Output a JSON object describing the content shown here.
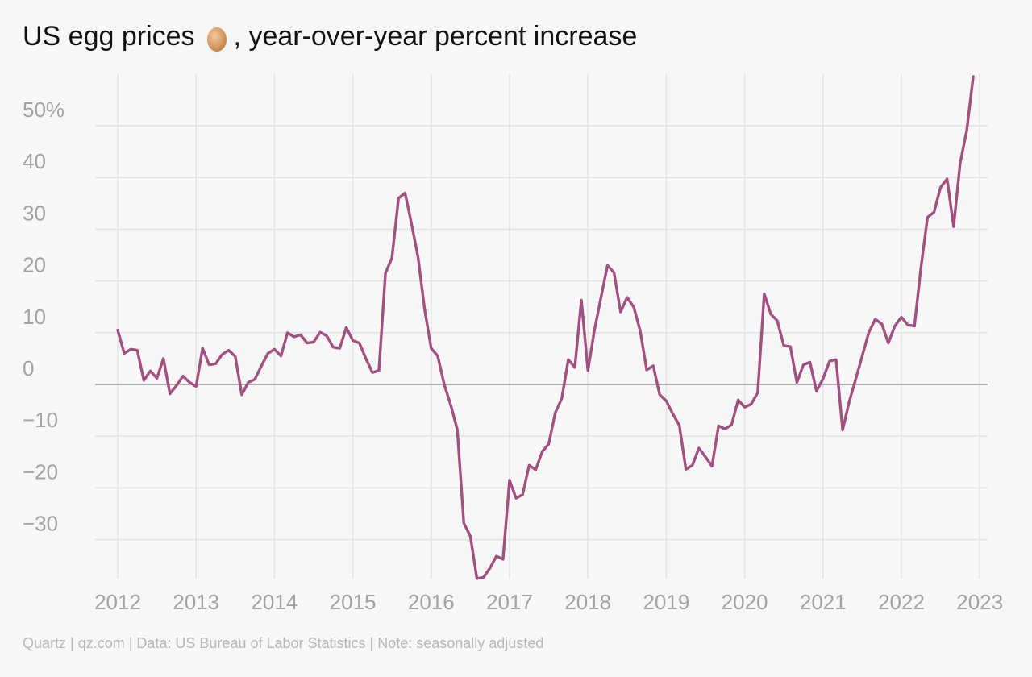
{
  "title": {
    "before": "US egg prices",
    "after": ", year-over-year percent increase",
    "icon": "egg-icon"
  },
  "footer": "Quartz | qz.com | Data: US Bureau of Labor Statistics | Note: seasonally adjusted",
  "colors": {
    "line": "#a2507f",
    "grid": "#e2e2e2",
    "zero": "#999999",
    "ticks": "#a3a3a3",
    "background": "#f7f7f7"
  },
  "chart_data": {
    "type": "line",
    "title": "US egg prices, year-over-year percent increase",
    "xlabel": "",
    "ylabel": "",
    "xlim": [
      2012,
      2023
    ],
    "ylim": [
      -38,
      60
    ],
    "y_ticks": [
      {
        "value": 50,
        "label": "50%"
      },
      {
        "value": 40,
        "label": "40"
      },
      {
        "value": 30,
        "label": "30"
      },
      {
        "value": 20,
        "label": "20"
      },
      {
        "value": 10,
        "label": "10"
      },
      {
        "value": 0,
        "label": "0"
      },
      {
        "value": -10,
        "label": "−10"
      },
      {
        "value": -20,
        "label": "−20"
      },
      {
        "value": -30,
        "label": "−30"
      }
    ],
    "x_ticks": [
      "2012",
      "2013",
      "2014",
      "2015",
      "2016",
      "2017",
      "2018",
      "2019",
      "2020",
      "2021",
      "2022",
      "2023"
    ],
    "grid": true,
    "legend": "none",
    "series": [
      {
        "start_year": 2012,
        "frequency": "monthly",
        "values": [
          10.5,
          6,
          6.8,
          6.6,
          0.8,
          2.6,
          1.2,
          5,
          -1.8,
          -0.2,
          1.6,
          0.4,
          -0.4,
          7,
          3.8,
          4,
          5.8,
          6.6,
          5.4,
          -2,
          0.4,
          1,
          3.6,
          6,
          6.8,
          5.5,
          10,
          9.2,
          9.6,
          8,
          8.2,
          10.1,
          9.4,
          7.2,
          7,
          11,
          8.5,
          8,
          5,
          2.3,
          2.7,
          21.5,
          24.5,
          36,
          37,
          31,
          24.5,
          14.5,
          7,
          5.5,
          0,
          -4,
          -8.7,
          -26.8,
          -29.3,
          -37.5,
          -37.3,
          -35.5,
          -33.2,
          -33.8,
          -18.5,
          -22,
          -21.3,
          -15.6,
          -16.5,
          -13,
          -11.5,
          -5.5,
          -2.7,
          4.8,
          3.3,
          16.3,
          2.7,
          10.5,
          16.8,
          23,
          21.6,
          14,
          16.8,
          15,
          10.4,
          2.8,
          3.6,
          -2,
          -3.2,
          -5.7,
          -7.9,
          -16.4,
          -15.6,
          -12.3,
          -14,
          -15.8,
          -8,
          -8.6,
          -7.8,
          -3,
          -4.4,
          -3.8,
          -1.6,
          17.5,
          13.6,
          12.3,
          7.5,
          7.3,
          0.4,
          3.8,
          4.3,
          -1.3,
          1.1,
          4.5,
          4.8,
          -8.8,
          -3.4,
          1,
          5.5,
          10,
          12.6,
          11.7,
          8,
          11.3,
          13,
          11.5,
          11.3,
          22.6,
          32.3,
          33.3,
          38.1,
          39.7,
          30.5,
          42.8,
          49,
          59.5
        ]
      }
    ]
  }
}
